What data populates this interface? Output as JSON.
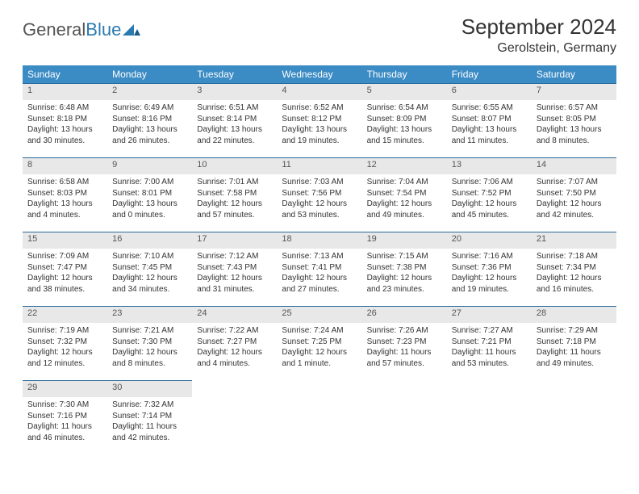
{
  "brand": {
    "part1": "General",
    "part2": "Blue"
  },
  "title": "September 2024",
  "location": "Gerolstein, Germany",
  "colors": {
    "header_bg": "#3b8bc4",
    "header_text": "#ffffff",
    "daynum_bg": "#e8e8e8",
    "daynum_border": "#2a6a9a",
    "text": "#333333",
    "brand_gray": "#555555",
    "brand_blue": "#2a7ab0",
    "page_bg": "#ffffff"
  },
  "weekdays": [
    "Sunday",
    "Monday",
    "Tuesday",
    "Wednesday",
    "Thursday",
    "Friday",
    "Saturday"
  ],
  "weeks": [
    [
      {
        "day": "1",
        "sunrise": "6:48 AM",
        "sunset": "8:18 PM",
        "daylight": "13 hours and 30 minutes."
      },
      {
        "day": "2",
        "sunrise": "6:49 AM",
        "sunset": "8:16 PM",
        "daylight": "13 hours and 26 minutes."
      },
      {
        "day": "3",
        "sunrise": "6:51 AM",
        "sunset": "8:14 PM",
        "daylight": "13 hours and 22 minutes."
      },
      {
        "day": "4",
        "sunrise": "6:52 AM",
        "sunset": "8:12 PM",
        "daylight": "13 hours and 19 minutes."
      },
      {
        "day": "5",
        "sunrise": "6:54 AM",
        "sunset": "8:09 PM",
        "daylight": "13 hours and 15 minutes."
      },
      {
        "day": "6",
        "sunrise": "6:55 AM",
        "sunset": "8:07 PM",
        "daylight": "13 hours and 11 minutes."
      },
      {
        "day": "7",
        "sunrise": "6:57 AM",
        "sunset": "8:05 PM",
        "daylight": "13 hours and 8 minutes."
      }
    ],
    [
      {
        "day": "8",
        "sunrise": "6:58 AM",
        "sunset": "8:03 PM",
        "daylight": "13 hours and 4 minutes."
      },
      {
        "day": "9",
        "sunrise": "7:00 AM",
        "sunset": "8:01 PM",
        "daylight": "13 hours and 0 minutes."
      },
      {
        "day": "10",
        "sunrise": "7:01 AM",
        "sunset": "7:58 PM",
        "daylight": "12 hours and 57 minutes."
      },
      {
        "day": "11",
        "sunrise": "7:03 AM",
        "sunset": "7:56 PM",
        "daylight": "12 hours and 53 minutes."
      },
      {
        "day": "12",
        "sunrise": "7:04 AM",
        "sunset": "7:54 PM",
        "daylight": "12 hours and 49 minutes."
      },
      {
        "day": "13",
        "sunrise": "7:06 AM",
        "sunset": "7:52 PM",
        "daylight": "12 hours and 45 minutes."
      },
      {
        "day": "14",
        "sunrise": "7:07 AM",
        "sunset": "7:50 PM",
        "daylight": "12 hours and 42 minutes."
      }
    ],
    [
      {
        "day": "15",
        "sunrise": "7:09 AM",
        "sunset": "7:47 PM",
        "daylight": "12 hours and 38 minutes."
      },
      {
        "day": "16",
        "sunrise": "7:10 AM",
        "sunset": "7:45 PM",
        "daylight": "12 hours and 34 minutes."
      },
      {
        "day": "17",
        "sunrise": "7:12 AM",
        "sunset": "7:43 PM",
        "daylight": "12 hours and 31 minutes."
      },
      {
        "day": "18",
        "sunrise": "7:13 AM",
        "sunset": "7:41 PM",
        "daylight": "12 hours and 27 minutes."
      },
      {
        "day": "19",
        "sunrise": "7:15 AM",
        "sunset": "7:38 PM",
        "daylight": "12 hours and 23 minutes."
      },
      {
        "day": "20",
        "sunrise": "7:16 AM",
        "sunset": "7:36 PM",
        "daylight": "12 hours and 19 minutes."
      },
      {
        "day": "21",
        "sunrise": "7:18 AM",
        "sunset": "7:34 PM",
        "daylight": "12 hours and 16 minutes."
      }
    ],
    [
      {
        "day": "22",
        "sunrise": "7:19 AM",
        "sunset": "7:32 PM",
        "daylight": "12 hours and 12 minutes."
      },
      {
        "day": "23",
        "sunrise": "7:21 AM",
        "sunset": "7:30 PM",
        "daylight": "12 hours and 8 minutes."
      },
      {
        "day": "24",
        "sunrise": "7:22 AM",
        "sunset": "7:27 PM",
        "daylight": "12 hours and 4 minutes."
      },
      {
        "day": "25",
        "sunrise": "7:24 AM",
        "sunset": "7:25 PM",
        "daylight": "12 hours and 1 minute."
      },
      {
        "day": "26",
        "sunrise": "7:26 AM",
        "sunset": "7:23 PM",
        "daylight": "11 hours and 57 minutes."
      },
      {
        "day": "27",
        "sunrise": "7:27 AM",
        "sunset": "7:21 PM",
        "daylight": "11 hours and 53 minutes."
      },
      {
        "day": "28",
        "sunrise": "7:29 AM",
        "sunset": "7:18 PM",
        "daylight": "11 hours and 49 minutes."
      }
    ],
    [
      {
        "day": "29",
        "sunrise": "7:30 AM",
        "sunset": "7:16 PM",
        "daylight": "11 hours and 46 minutes."
      },
      {
        "day": "30",
        "sunrise": "7:32 AM",
        "sunset": "7:14 PM",
        "daylight": "11 hours and 42 minutes."
      },
      null,
      null,
      null,
      null,
      null
    ]
  ],
  "labels": {
    "sunrise": "Sunrise:",
    "sunset": "Sunset:",
    "daylight": "Daylight:"
  }
}
